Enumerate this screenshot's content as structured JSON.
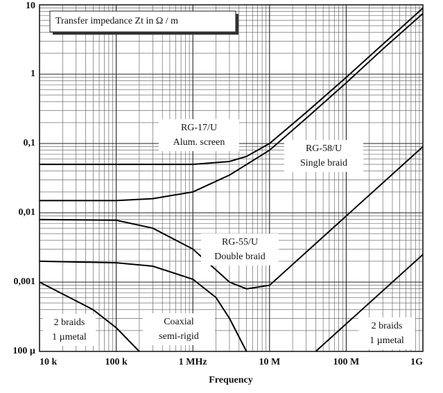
{
  "chart_data": {
    "type": "line",
    "title": "Transfer impedance Zt in Ω / m",
    "x_label": "Frequency",
    "log_x": true,
    "log_y": true,
    "grid": true,
    "color": "#000000",
    "xlim": [
      10000,
      1000000000
    ],
    "xticks": [
      {
        "value": 10000,
        "label": "10 k"
      },
      {
        "value": 100000,
        "label": "100 k"
      },
      {
        "value": 1000000,
        "label": "1 MHz"
      },
      {
        "value": 10000000,
        "label": "10 M"
      },
      {
        "value": 100000000,
        "label": "100 M"
      },
      {
        "value": 1000000000,
        "label": "1G"
      }
    ],
    "ylim": [
      0.0001,
      10
    ],
    "yticks": [
      {
        "value": 0.0001,
        "label": "100 µ"
      },
      {
        "value": 0.001,
        "label": "0,001"
      },
      {
        "value": 0.01,
        "label": "0,01"
      },
      {
        "value": 0.1,
        "label": "0,1"
      },
      1,
      10
    ],
    "series": [
      {
        "name": "RG-17/U",
        "note": "Alum. screen",
        "x": [
          10000,
          100000,
          1000000,
          3000000,
          5000000,
          10000000,
          30000000,
          100000000,
          300000000,
          1000000000
        ],
        "values": [
          0.05,
          0.05,
          0.05,
          0.055,
          0.065,
          0.1,
          0.28,
          0.9,
          2.7,
          9
        ]
      },
      {
        "name": "RG-58/U",
        "note": "Single braid",
        "x": [
          10000,
          100000,
          300000,
          1000000,
          3000000,
          10000000,
          30000000,
          100000000,
          300000000,
          1000000000
        ],
        "values": [
          0.015,
          0.015,
          0.016,
          0.02,
          0.035,
          0.08,
          0.23,
          0.75,
          2.3,
          7.5
        ]
      },
      {
        "name": "RG-55/U",
        "note": "Double braid",
        "x": [
          10000,
          100000,
          300000,
          1000000,
          2000000,
          3000000,
          5000000,
          10000000,
          20000000,
          100000000,
          1000000000
        ],
        "values": [
          0.008,
          0.0078,
          0.006,
          0.003,
          0.0015,
          0.001,
          0.0008,
          0.0009,
          0.0018,
          0.009,
          0.09
        ]
      },
      {
        "name": "Coaxial",
        "note": "semi-rigid",
        "x": [
          10000,
          100000,
          300000,
          1000000,
          2000000,
          3000000,
          5000000
        ],
        "values": [
          0.002,
          0.0019,
          0.0017,
          0.0011,
          0.0006,
          0.0003,
          0.0001
        ]
      },
      {
        "name": "2 braids",
        "note": "1 µmetal",
        "x": [
          10000,
          50000,
          100000,
          200000
        ],
        "values": [
          0.001,
          0.0004,
          0.00022,
          0.0001
        ]
      },
      {
        "name": "2 braids",
        "note": "1 µmetal",
        "x": [
          40000000,
          1000000000
        ],
        "values": [
          0.0001,
          0.0025
        ]
      }
    ]
  }
}
